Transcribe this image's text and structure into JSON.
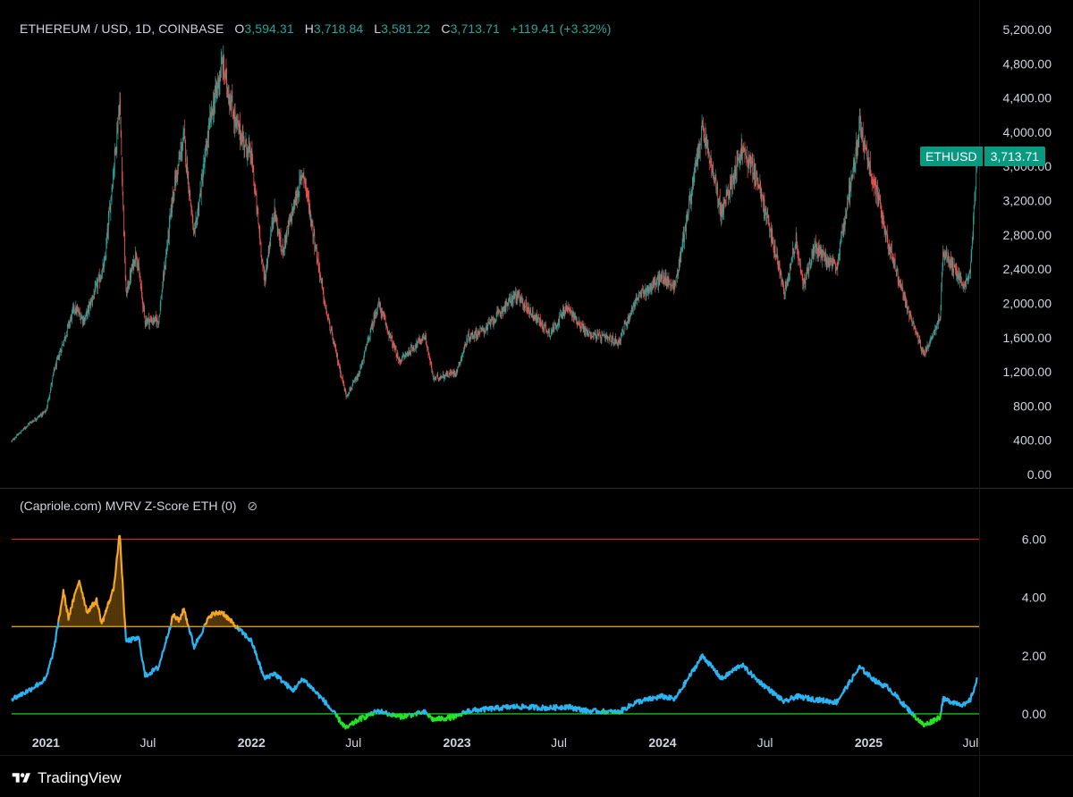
{
  "header": {
    "symbol": "ETHEREUM / USD, 1D, COINBASE",
    "open_label": "O",
    "open": "3,594.31",
    "high_label": "H",
    "high": "3,718.84",
    "low_label": "L",
    "low": "3,581.22",
    "close_label": "C",
    "close": "3,713.71",
    "change": "+119.41 (+3.32%)"
  },
  "price_tag": {
    "symbol": "ETHUSD",
    "price": "3,713.71"
  },
  "indicator": {
    "title": "(Capriole.com) MVRV Z-Score ETH (0)",
    "visibility_icon": "eye-off-icon"
  },
  "branding": {
    "name": "TradingView"
  },
  "colors": {
    "background": "#000000",
    "up": "#26a69a",
    "down": "#ef5350",
    "red_line": "#e62121",
    "orange_line": "#f5a623",
    "green_line": "#22e622",
    "zscore_normal": "#2ab4f2",
    "zscore_high": "#f5a623",
    "zscore_low": "#22e622"
  },
  "chart_data": [
    {
      "type": "candlestick",
      "title": "ETHEREUM / USD, 1D, COINBASE",
      "ylim": [
        0,
        5200
      ],
      "y_ticks": [
        "0.00",
        "400.00",
        "800.00",
        "1,200.00",
        "1,600.00",
        "2,000.00",
        "2,400.00",
        "2,800.00",
        "3,200.00",
        "3,600.00",
        "4,000.00",
        "4,400.00",
        "4,800.00",
        "5,200.00"
      ],
      "x_ticks": [
        "2021",
        "Jul",
        "2022",
        "Jul",
        "2023",
        "Jul",
        "2024",
        "Jul",
        "2025",
        "Jul"
      ],
      "x_tick_dates": [
        "2021-01-01",
        "2021-07-01",
        "2022-01-01",
        "2022-07-01",
        "2023-01-01",
        "2023-07-01",
        "2024-01-01",
        "2024-07-01",
        "2025-01-01",
        "2025-07-01"
      ],
      "series": [
        {
          "values_approx_close": [
            [
              "2020-11-01",
              390
            ],
            [
              "2020-12-01",
              590
            ],
            [
              "2021-01-01",
              740
            ],
            [
              "2021-01-15",
              1200
            ],
            [
              "2021-02-20",
              1950
            ],
            [
              "2021-03-10",
              1800
            ],
            [
              "2021-04-15",
              2450
            ],
            [
              "2021-05-12",
              4350
            ],
            [
              "2021-05-23",
              2100
            ],
            [
              "2021-06-10",
              2600
            ],
            [
              "2021-06-26",
              1800
            ],
            [
              "2021-07-20",
              1800
            ],
            [
              "2021-08-15",
              3300
            ],
            [
              "2021-09-03",
              3950
            ],
            [
              "2021-09-21",
              2760
            ],
            [
              "2021-10-20",
              4150
            ],
            [
              "2021-11-10",
              4800
            ],
            [
              "2021-12-04",
              4100
            ],
            [
              "2022-01-01",
              3700
            ],
            [
              "2022-01-24",
              2250
            ],
            [
              "2022-02-10",
              3100
            ],
            [
              "2022-02-24",
              2600
            ],
            [
              "2022-04-03",
              3550
            ],
            [
              "2022-05-12",
              1950
            ],
            [
              "2022-06-18",
              920
            ],
            [
              "2022-07-10",
              1150
            ],
            [
              "2022-08-14",
              2000
            ],
            [
              "2022-09-20",
              1320
            ],
            [
              "2022-11-05",
              1620
            ],
            [
              "2022-11-20",
              1120
            ],
            [
              "2022-12-31",
              1200
            ],
            [
              "2023-01-20",
              1600
            ],
            [
              "2023-02-20",
              1700
            ],
            [
              "2023-04-15",
              2100
            ],
            [
              "2023-06-15",
              1650
            ],
            [
              "2023-07-15",
              1950
            ],
            [
              "2023-08-20",
              1650
            ],
            [
              "2023-10-15",
              1550
            ],
            [
              "2023-11-15",
              2050
            ],
            [
              "2023-12-31",
              2300
            ],
            [
              "2024-01-23",
              2200
            ],
            [
              "2024-03-12",
              4050
            ],
            [
              "2024-04-15",
              3050
            ],
            [
              "2024-05-20",
              3800
            ],
            [
              "2024-06-15",
              3500
            ],
            [
              "2024-08-05",
              2150
            ],
            [
              "2024-08-25",
              2750
            ],
            [
              "2024-09-06",
              2200
            ],
            [
              "2024-09-27",
              2650
            ],
            [
              "2024-11-05",
              2400
            ],
            [
              "2024-12-16",
              4050
            ],
            [
              "2025-01-15",
              3300
            ],
            [
              "2025-02-05",
              2700
            ],
            [
              "2025-03-10",
              1950
            ],
            [
              "2025-04-09",
              1400
            ],
            [
              "2025-05-08",
              1850
            ],
            [
              "2025-05-13",
              2600
            ],
            [
              "2025-06-22",
              2200
            ],
            [
              "2025-07-01",
              2450
            ],
            [
              "2025-07-13",
              3713.71
            ]
          ]
        }
      ]
    },
    {
      "type": "line",
      "title": "(Capriole.com) MVRV Z-Score ETH (0)",
      "ylim": [
        -1.2,
        7.4
      ],
      "y_ticks": [
        "0.00",
        "2.00",
        "4.00",
        "6.00"
      ],
      "reference_lines": [
        6,
        3,
        0
      ],
      "series": [
        {
          "values": [
            [
              "2020-11-01",
              0.5
            ],
            [
              "2020-12-01",
              0.8
            ],
            [
              "2021-01-01",
              1.2
            ],
            [
              "2021-01-15",
              2.2
            ],
            [
              "2021-02-01",
              4.2
            ],
            [
              "2021-02-10",
              3.3
            ],
            [
              "2021-03-01",
              4.6
            ],
            [
              "2021-03-15",
              3.5
            ],
            [
              "2021-04-01",
              3.9
            ],
            [
              "2021-04-10",
              3.1
            ],
            [
              "2021-05-01",
              4.3
            ],
            [
              "2021-05-12",
              6.2
            ],
            [
              "2021-05-23",
              2.5
            ],
            [
              "2021-06-15",
              2.6
            ],
            [
              "2021-06-26",
              1.3
            ],
            [
              "2021-07-20",
              1.6
            ],
            [
              "2021-08-15",
              3.4
            ],
            [
              "2021-08-25",
              3.2
            ],
            [
              "2021-09-03",
              3.6
            ],
            [
              "2021-09-21",
              2.3
            ],
            [
              "2021-10-20",
              3.4
            ],
            [
              "2021-11-10",
              3.5
            ],
            [
              "2021-12-04",
              3.0
            ],
            [
              "2022-01-01",
              2.5
            ],
            [
              "2022-01-24",
              1.2
            ],
            [
              "2022-02-10",
              1.4
            ],
            [
              "2022-03-15",
              0.8
            ],
            [
              "2022-04-03",
              1.2
            ],
            [
              "2022-05-12",
              0.4
            ],
            [
              "2022-06-18",
              -0.5
            ],
            [
              "2022-07-10",
              -0.2
            ],
            [
              "2022-08-14",
              0.1
            ],
            [
              "2022-09-20",
              -0.1
            ],
            [
              "2022-11-05",
              0.05
            ],
            [
              "2022-11-20",
              -0.2
            ],
            [
              "2022-12-31",
              -0.1
            ],
            [
              "2023-01-20",
              0.1
            ],
            [
              "2023-04-15",
              0.25
            ],
            [
              "2023-06-15",
              0.2
            ],
            [
              "2023-07-15",
              0.25
            ],
            [
              "2023-08-20",
              0.1
            ],
            [
              "2023-10-15",
              0.05
            ],
            [
              "2023-11-15",
              0.4
            ],
            [
              "2023-12-31",
              0.6
            ],
            [
              "2024-01-23",
              0.5
            ],
            [
              "2024-03-12",
              2.0
            ],
            [
              "2024-04-15",
              1.2
            ],
            [
              "2024-05-20",
              1.7
            ],
            [
              "2024-06-15",
              1.2
            ],
            [
              "2024-08-05",
              0.4
            ],
            [
              "2024-08-25",
              0.6
            ],
            [
              "2024-09-27",
              0.5
            ],
            [
              "2024-11-05",
              0.4
            ],
            [
              "2024-12-16",
              1.6
            ],
            [
              "2025-01-15",
              1.1
            ],
            [
              "2025-02-05",
              0.9
            ],
            [
              "2025-03-10",
              0.2
            ],
            [
              "2025-04-09",
              -0.4
            ],
            [
              "2025-05-08",
              -0.1
            ],
            [
              "2025-05-13",
              0.5
            ],
            [
              "2025-06-22",
              0.3
            ],
            [
              "2025-07-01",
              0.5
            ],
            [
              "2025-07-13",
              1.2
            ]
          ]
        }
      ]
    }
  ]
}
